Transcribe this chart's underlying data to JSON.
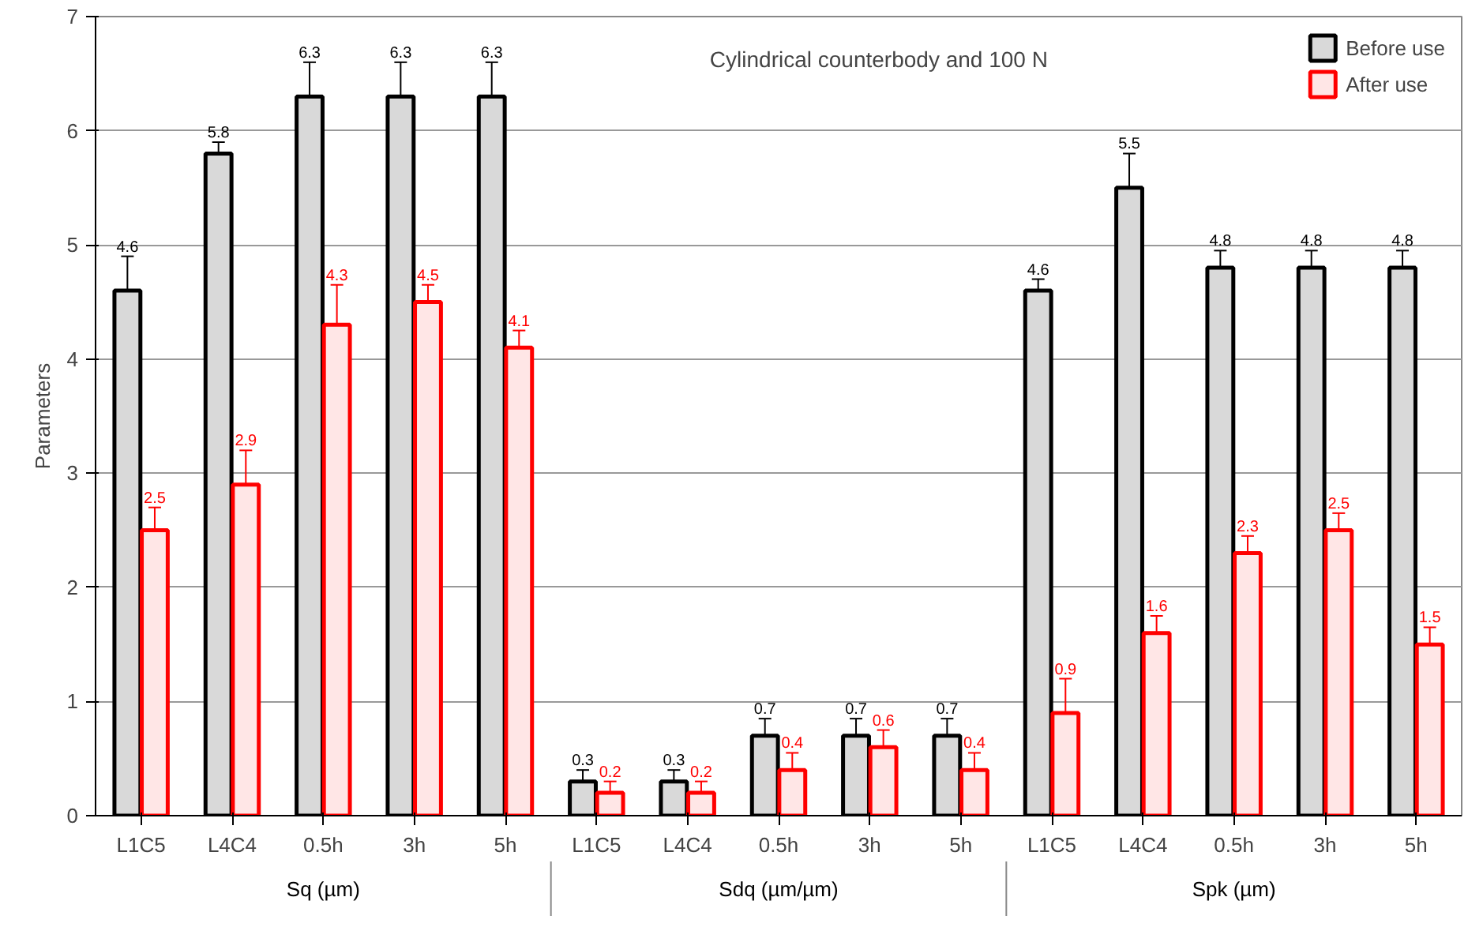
{
  "chart_data": {
    "type": "bar",
    "title": "Cylindrical counterbody and 100 N",
    "ylabel": "Parameters",
    "categories": [
      "L1C5",
      "L4C4",
      "0.5h",
      "3h",
      "5h",
      "L1C5",
      "L4C4",
      "0.5h",
      "3h",
      "5h",
      "L1C5",
      "L4C4",
      "0.5h",
      "3h",
      "5h"
    ],
    "annotations": [
      "Sq (µm)",
      "Sdq (µm/µm)",
      "Spk (µm)"
    ],
    "series": [
      {
        "name": "Before use",
        "color": "#000000",
        "values": [
          4.6,
          5.8,
          6.3,
          6.3,
          6.3,
          0.3,
          0.3,
          0.7,
          0.7,
          0.7,
          4.6,
          5.5,
          4.8,
          4.8,
          4.8
        ],
        "errors": [
          0.3,
          0.1,
          0.3,
          0.3,
          0.3,
          0.1,
          0.1,
          0.15,
          0.15,
          0.15,
          0.1,
          0.3,
          0.15,
          0.15,
          0.15
        ]
      },
      {
        "name": "After use",
        "color": "#ff0000",
        "values": [
          2.5,
          2.9,
          4.3,
          4.5,
          4.1,
          0.2,
          0.2,
          0.4,
          0.6,
          0.4,
          0.9,
          1.6,
          2.3,
          2.5,
          1.5
        ],
        "errors": [
          0.2,
          0.3,
          0.35,
          0.15,
          0.15,
          0.1,
          0.1,
          0.15,
          0.15,
          0.15,
          0.3,
          0.15,
          0.15,
          0.15,
          0.15
        ]
      }
    ],
    "data_labels": true,
    "ylim": [
      0,
      7
    ],
    "yticks": [
      0,
      1,
      2,
      3,
      4,
      5,
      6,
      7
    ],
    "grid": "y",
    "legend": "top right"
  }
}
